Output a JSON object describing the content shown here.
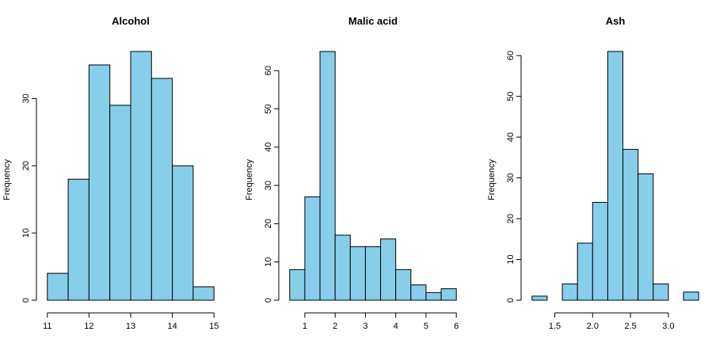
{
  "chart_data": [
    {
      "type": "histogram",
      "title": "Alcohol",
      "y_label": "Frequency",
      "color": "#87ceeb",
      "bins": [
        11,
        11.5,
        12,
        12.5,
        13,
        13.5,
        14,
        14.5,
        15
      ],
      "values": [
        4,
        18,
        35,
        29,
        37,
        33,
        20,
        2
      ],
      "xlim": [
        11,
        15
      ],
      "ylim": [
        0,
        37
      ],
      "xticks": [
        11,
        12,
        13,
        14,
        15
      ],
      "yticks": [
        0,
        10,
        20,
        30
      ]
    },
    {
      "type": "histogram",
      "title": "Malic acid",
      "y_label": "Frequency",
      "color": "#87ceeb",
      "bins": [
        0.5,
        1,
        1.5,
        2,
        2.5,
        3,
        3.5,
        4,
        4.5,
        5,
        5.5,
        6
      ],
      "values": [
        8,
        27,
        65,
        17,
        14,
        14,
        16,
        8,
        4,
        2,
        3
      ],
      "xlim": [
        0.5,
        6
      ],
      "ylim": [
        0,
        65
      ],
      "xticks": [
        1,
        2,
        3,
        4,
        5,
        6
      ],
      "yticks": [
        0,
        10,
        20,
        30,
        40,
        50,
        60
      ]
    },
    {
      "type": "histogram",
      "title": "Ash",
      "y_label": "Frequency",
      "color": "#87ceeb",
      "bins": [
        1.2,
        1.4,
        1.6,
        1.8,
        2.0,
        2.2,
        2.4,
        2.6,
        2.8,
        3.0,
        3.2,
        3.4
      ],
      "values": [
        1,
        0,
        4,
        14,
        24,
        61,
        37,
        31,
        4,
        0,
        2
      ],
      "xlim": [
        1.2,
        3.4
      ],
      "ylim": [
        0,
        61
      ],
      "xticks": [
        {
          "value": 1.5,
          "label": "1.5"
        },
        {
          "value": 2,
          "label": "2.0"
        },
        {
          "value": 2.5,
          "label": "2.5"
        },
        {
          "value": 3,
          "label": "3.0"
        }
      ],
      "yticks": [
        0,
        10,
        20,
        30,
        40,
        50,
        60
      ]
    }
  ]
}
